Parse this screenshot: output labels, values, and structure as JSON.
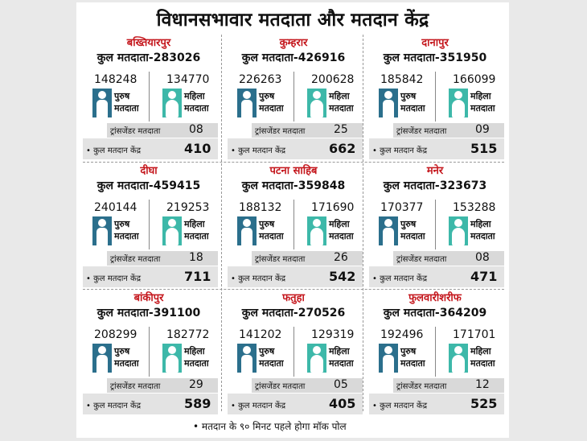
{
  "title": "विधानसभावार मतदाता और मतदान केंद्र",
  "labels": {
    "male": [
      "पुरुष",
      "मतदाता"
    ],
    "female": [
      "महिला",
      "मतदाता"
    ],
    "transgender": "ट्रांसजेंडर मतदाता",
    "polling_centers": "• कुल मतदान केंद्र"
  },
  "icons": {
    "male": "male-voter-icon",
    "female": "female-voter-icon"
  },
  "colors": {
    "heading": "#c4161c",
    "male_icon": "#2b6f8c",
    "female_icon": "#3db8a9",
    "row_bg": "#d9d9d9"
  },
  "constituencies": [
    {
      "name": "बख्तियारपुर",
      "total": "कुल मतदाता-283026",
      "male": "148248",
      "female": "134770",
      "transgender": "08",
      "centers": "410"
    },
    {
      "name": "कुम्हरार",
      "total": "कुल मतदाता-426916",
      "male": "226263",
      "female": "200628",
      "transgender": "25",
      "centers": "662"
    },
    {
      "name": "दानापुर",
      "total": "कुल मतदाता-351950",
      "male": "185842",
      "female": "166099",
      "transgender": "09",
      "centers": "515"
    },
    {
      "name": "दीघा",
      "total": "कुल मतदाता-459415",
      "male": "240144",
      "female": "219253",
      "transgender": "18",
      "centers": "711"
    },
    {
      "name": "पटना साहिब",
      "total": "कुल मतदाता-359848",
      "male": "188132",
      "female": "171690",
      "transgender": "26",
      "centers": "542"
    },
    {
      "name": "मनेर",
      "total": "कुल मतदाता-323673",
      "male": "170377",
      "female": "153288",
      "transgender": "08",
      "centers": "471"
    },
    {
      "name": "बांकीपुर",
      "total": "कुल मतदाता-391100",
      "male": "208299",
      "female": "182772",
      "transgender": "29",
      "centers": "589"
    },
    {
      "name": "फतुहा",
      "total": "कुल मतदाता-270526",
      "male": "141202",
      "female": "129319",
      "transgender": "05",
      "centers": "405"
    },
    {
      "name": "फुलवारीशरीफ",
      "total": "कुल मतदाता-364209",
      "male": "192496",
      "female": "171701",
      "transgender": "12",
      "centers": "525"
    }
  ],
  "footer": "• मतदान के ९० मिनट पहले होगा मॉक पोल"
}
